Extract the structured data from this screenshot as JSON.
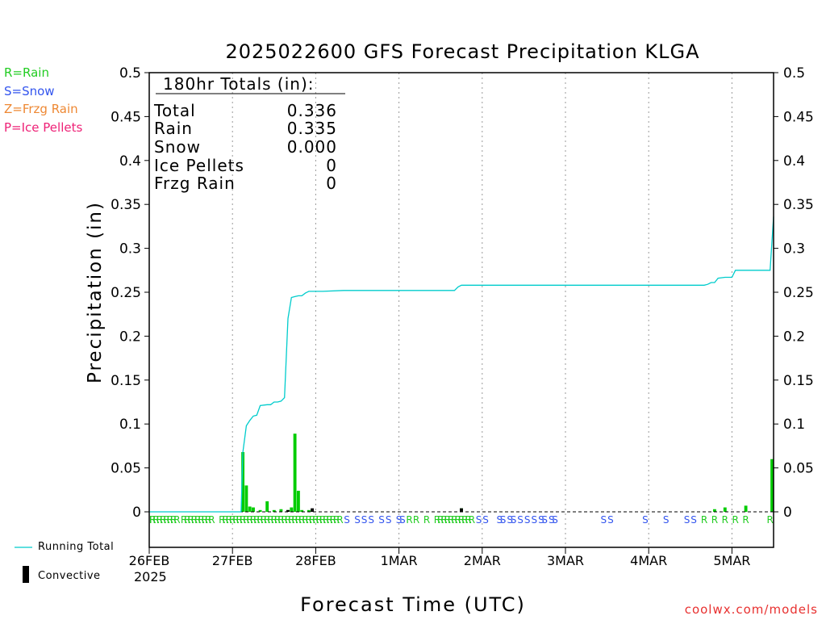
{
  "title": "2025022600 GFS Forecast Precipitation KLGA",
  "type_legend": [
    {
      "text": "R=Rain",
      "color": "#22cc22"
    },
    {
      "text": "S=Snow",
      "color": "#3355ee"
    },
    {
      "text": "Z=Frzg Rain",
      "color": "#ee8833"
    },
    {
      "text": "P=Ice Pellets",
      "color": "#ee2277"
    }
  ],
  "totals_box": {
    "title": "180hr Totals (in):",
    "rows": [
      {
        "label": "Total",
        "value": "0.336"
      },
      {
        "label": "Rain",
        "value": "0.335"
      },
      {
        "label": "Snow",
        "value": "0.000"
      },
      {
        "label": "Ice Pellets",
        "value": "0"
      },
      {
        "label": "Frzg Rain",
        "value": "0"
      }
    ]
  },
  "bottom_legend": {
    "running_total": "Running Total",
    "convective": "Convective"
  },
  "x_year": "2025",
  "credit": "coolwx.com/models",
  "chart_data": {
    "type": "bar",
    "title": "2025022600 GFS Forecast Precipitation KLGA",
    "xlabel": "Forecast Time (UTC)",
    "ylabel": "Precipitation (in)",
    "ylim": [
      0,
      0.5
    ],
    "xlim": [
      0,
      180
    ],
    "y_ticks": [
      "0",
      "0.05",
      "0.1",
      "0.15",
      "0.2",
      "0.25",
      "0.3",
      "0.35",
      "0.4",
      "0.45",
      "0.5"
    ],
    "x_ticks": [
      {
        "hour": 0,
        "label": "26FEB"
      },
      {
        "hour": 24,
        "label": "27FEB"
      },
      {
        "hour": 48,
        "label": "28FEB"
      },
      {
        "hour": 72,
        "label": "1MAR"
      },
      {
        "hour": 96,
        "label": "2MAR"
      },
      {
        "hour": 120,
        "label": "3MAR"
      },
      {
        "hour": 144,
        "label": "4MAR"
      },
      {
        "hour": 168,
        "label": "5MAR"
      }
    ],
    "grid": true,
    "colors": {
      "precip": "#00cc00",
      "convective": "#000000",
      "running_total": "#00cccc",
      "rain": "#22cc22",
      "snow": "#3355ee"
    },
    "precip_bars": [
      {
        "hour": 27,
        "value": 0.068
      },
      {
        "hour": 28,
        "value": 0.03
      },
      {
        "hour": 29,
        "value": 0.006
      },
      {
        "hour": 30,
        "value": 0.005
      },
      {
        "hour": 32,
        "value": 0.002
      },
      {
        "hour": 34,
        "value": 0.012
      },
      {
        "hour": 36,
        "value": 0.002
      },
      {
        "hour": 38,
        "value": 0.003
      },
      {
        "hour": 40,
        "value": 0.002
      },
      {
        "hour": 41,
        "value": 0.005
      },
      {
        "hour": 42,
        "value": 0.089
      },
      {
        "hour": 43,
        "value": 0.024
      },
      {
        "hour": 44,
        "value": 0.002
      },
      {
        "hour": 46,
        "value": 0.002
      },
      {
        "hour": 47,
        "value": 0.002
      },
      {
        "hour": 90,
        "value": 0.004
      },
      {
        "hour": 163,
        "value": 0.003
      },
      {
        "hour": 166,
        "value": 0.005
      },
      {
        "hour": 172,
        "value": 0.007
      },
      {
        "hour": 180,
        "value": 0.06
      }
    ],
    "convective_bars": [
      {
        "hour": 40,
        "value": 0.002
      },
      {
        "hour": 47,
        "value": 0.004
      },
      {
        "hour": 90,
        "value": 0.004
      }
    ],
    "running_total": [
      [
        0,
        0
      ],
      [
        26.5,
        0
      ],
      [
        27,
        0.068
      ],
      [
        28,
        0.098
      ],
      [
        29,
        0.104
      ],
      [
        30,
        0.109
      ],
      [
        31,
        0.11
      ],
      [
        32,
        0.121
      ],
      [
        34,
        0.122
      ],
      [
        35,
        0.122
      ],
      [
        36,
        0.125
      ],
      [
        37,
        0.125
      ],
      [
        38,
        0.126
      ],
      [
        39,
        0.13
      ],
      [
        40,
        0.22
      ],
      [
        41,
        0.244
      ],
      [
        42,
        0.245
      ],
      [
        43,
        0.246
      ],
      [
        44,
        0.246
      ],
      [
        45,
        0.249
      ],
      [
        46,
        0.251
      ],
      [
        47,
        0.251
      ],
      [
        50,
        0.251
      ],
      [
        56,
        0.252
      ],
      [
        88,
        0.252
      ],
      [
        89,
        0.256
      ],
      [
        90,
        0.258
      ],
      [
        92,
        0.258
      ],
      [
        160,
        0.258
      ],
      [
        161,
        0.259
      ],
      [
        162,
        0.261
      ],
      [
        163,
        0.261
      ],
      [
        164,
        0.266
      ],
      [
        166,
        0.267
      ],
      [
        168,
        0.267
      ],
      [
        169,
        0.275
      ],
      [
        171,
        0.275
      ],
      [
        179,
        0.275
      ],
      [
        180,
        0.336
      ]
    ],
    "type_markers": [
      {
        "hour": 0,
        "type": "R"
      },
      {
        "hour": 1,
        "type": "R"
      },
      {
        "hour": 2,
        "type": "R"
      },
      {
        "hour": 3,
        "type": "R"
      },
      {
        "hour": 4,
        "type": "R"
      },
      {
        "hour": 5,
        "type": "R"
      },
      {
        "hour": 6,
        "type": "R"
      },
      {
        "hour": 7,
        "type": "R"
      },
      {
        "hour": 8,
        "type": "R"
      },
      {
        "hour": 10,
        "type": "R"
      },
      {
        "hour": 11,
        "type": "R"
      },
      {
        "hour": 12,
        "type": "R"
      },
      {
        "hour": 13,
        "type": "R"
      },
      {
        "hour": 14,
        "type": "R"
      },
      {
        "hour": 15,
        "type": "R"
      },
      {
        "hour": 16,
        "type": "R"
      },
      {
        "hour": 17,
        "type": "R"
      },
      {
        "hour": 18,
        "type": "R"
      },
      {
        "hour": 21,
        "type": "R"
      },
      {
        "hour": 22,
        "type": "R"
      },
      {
        "hour": 23,
        "type": "R"
      },
      {
        "hour": 24,
        "type": "R"
      },
      {
        "hour": 25,
        "type": "R"
      },
      {
        "hour": 26,
        "type": "R"
      },
      {
        "hour": 27,
        "type": "R"
      },
      {
        "hour": 28,
        "type": "R"
      },
      {
        "hour": 29,
        "type": "R"
      },
      {
        "hour": 30,
        "type": "R"
      },
      {
        "hour": 31,
        "type": "R"
      },
      {
        "hour": 32,
        "type": "R"
      },
      {
        "hour": 33,
        "type": "R"
      },
      {
        "hour": 34,
        "type": "R"
      },
      {
        "hour": 35,
        "type": "R"
      },
      {
        "hour": 36,
        "type": "R"
      },
      {
        "hour": 37,
        "type": "R"
      },
      {
        "hour": 38,
        "type": "R"
      },
      {
        "hour": 39,
        "type": "R"
      },
      {
        "hour": 40,
        "type": "R"
      },
      {
        "hour": 41,
        "type": "R"
      },
      {
        "hour": 42,
        "type": "R"
      },
      {
        "hour": 43,
        "type": "R"
      },
      {
        "hour": 44,
        "type": "R"
      },
      {
        "hour": 45,
        "type": "R"
      },
      {
        "hour": 46,
        "type": "R"
      },
      {
        "hour": 47,
        "type": "R"
      },
      {
        "hour": 48,
        "type": "R"
      },
      {
        "hour": 49,
        "type": "R"
      },
      {
        "hour": 50,
        "type": "R"
      },
      {
        "hour": 51,
        "type": "R"
      },
      {
        "hour": 52,
        "type": "R"
      },
      {
        "hour": 53,
        "type": "R"
      },
      {
        "hour": 54,
        "type": "R"
      },
      {
        "hour": 55,
        "type": "R"
      },
      {
        "hour": 57,
        "type": "S"
      },
      {
        "hour": 60,
        "type": "S"
      },
      {
        "hour": 62,
        "type": "S"
      },
      {
        "hour": 64,
        "type": "S"
      },
      {
        "hour": 67,
        "type": "S"
      },
      {
        "hour": 69,
        "type": "S"
      },
      {
        "hour": 72,
        "type": "S"
      },
      {
        "hour": 73,
        "type": "S"
      },
      {
        "hour": 75,
        "type": "R"
      },
      {
        "hour": 77,
        "type": "R"
      },
      {
        "hour": 80,
        "type": "R"
      },
      {
        "hour": 83,
        "type": "R"
      },
      {
        "hour": 84,
        "type": "R"
      },
      {
        "hour": 85,
        "type": "R"
      },
      {
        "hour": 86,
        "type": "R"
      },
      {
        "hour": 87,
        "type": "R"
      },
      {
        "hour": 88,
        "type": "R"
      },
      {
        "hour": 89,
        "type": "R"
      },
      {
        "hour": 90,
        "type": "R"
      },
      {
        "hour": 91,
        "type": "R"
      },
      {
        "hour": 92,
        "type": "R"
      },
      {
        "hour": 93,
        "type": "R"
      },
      {
        "hour": 95,
        "type": "S"
      },
      {
        "hour": 97,
        "type": "S"
      },
      {
        "hour": 101,
        "type": "S"
      },
      {
        "hour": 102,
        "type": "S"
      },
      {
        "hour": 104,
        "type": "S"
      },
      {
        "hour": 105,
        "type": "S"
      },
      {
        "hour": 107,
        "type": "S"
      },
      {
        "hour": 109,
        "type": "S"
      },
      {
        "hour": 111,
        "type": "S"
      },
      {
        "hour": 113,
        "type": "S"
      },
      {
        "hour": 114,
        "type": "S"
      },
      {
        "hour": 116,
        "type": "S"
      },
      {
        "hour": 117,
        "type": "S"
      },
      {
        "hour": 131,
        "type": "S"
      },
      {
        "hour": 133,
        "type": "S"
      },
      {
        "hour": 143,
        "type": "S"
      },
      {
        "hour": 149,
        "type": "S"
      },
      {
        "hour": 155,
        "type": "S"
      },
      {
        "hour": 157,
        "type": "S"
      },
      {
        "hour": 160,
        "type": "R"
      },
      {
        "hour": 163,
        "type": "R"
      },
      {
        "hour": 166,
        "type": "R"
      },
      {
        "hour": 169,
        "type": "R"
      },
      {
        "hour": 172,
        "type": "R"
      },
      {
        "hour": 179,
        "type": "R"
      }
    ]
  }
}
